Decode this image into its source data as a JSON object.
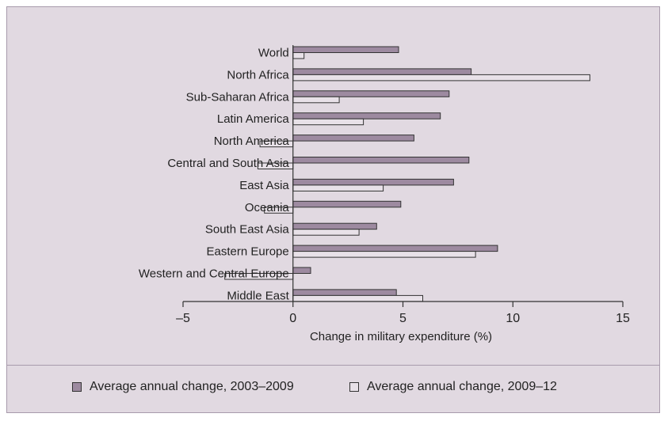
{
  "chart_data": {
    "type": "bar",
    "orientation": "horizontal",
    "title": "",
    "xlabel": "Change in military expenditure (%)",
    "ylabel": "",
    "xlim": [
      -5,
      15
    ],
    "xticks": [
      -5,
      0,
      5,
      10,
      15
    ],
    "xtick_labels": [
      "–5",
      "0",
      "5",
      "10",
      "15"
    ],
    "grid": false,
    "legend_position": "bottom",
    "categories": [
      "World",
      "North Africa",
      "Sub-Saharan Africa",
      "Latin America",
      "North America",
      "Central and South Asia",
      "East Asia",
      "Oceania",
      "South East Asia",
      "Eastern Europe",
      "Western and Central Europe",
      "Middle East"
    ],
    "series": [
      {
        "name": "Average annual change, 2003–2009",
        "color": "#9d8aa0",
        "values": [
          4.8,
          8.1,
          7.1,
          6.7,
          5.5,
          8.0,
          7.3,
          4.9,
          3.8,
          9.3,
          0.8,
          4.7
        ]
      },
      {
        "name": "Average annual change, 2009–12",
        "color": "#e8e1e8",
        "values": [
          0.5,
          13.5,
          2.1,
          3.2,
          -1.5,
          -1.6,
          4.1,
          -1.3,
          3.0,
          8.3,
          -3.1,
          5.9
        ]
      }
    ]
  }
}
